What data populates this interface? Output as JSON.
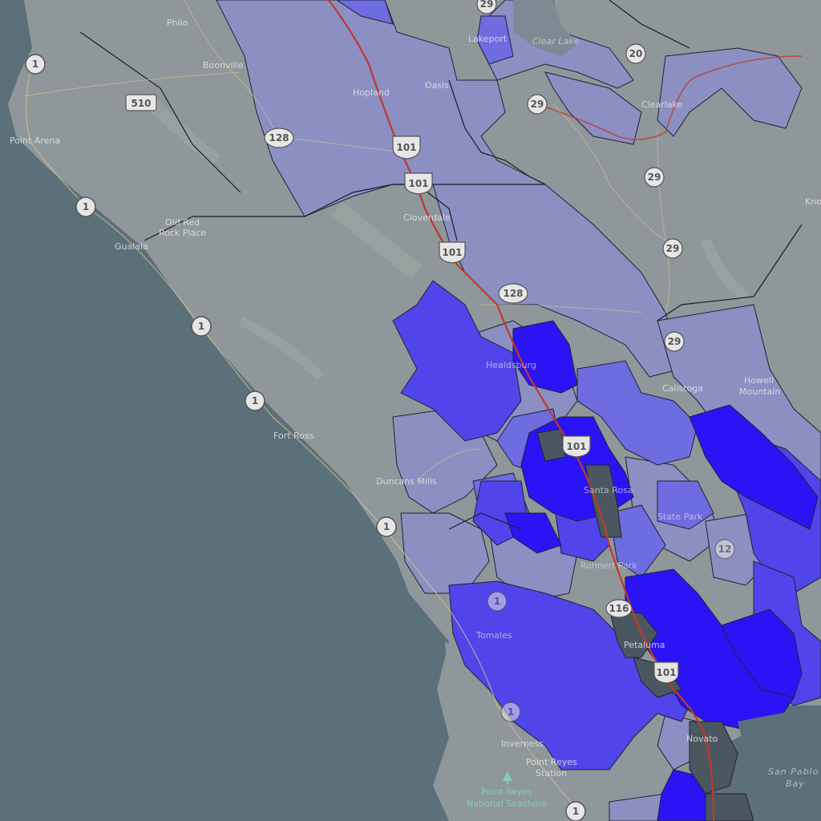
{
  "map": {
    "colors": {
      "water": "#5b7079",
      "land": "#8f979b",
      "tract_light": "#8b8fc2",
      "tract_mid": "#6d6ce0",
      "tract_strong": "#4f45ea",
      "tract_max": "#2a14f5",
      "urban": "#4b5760",
      "highway": "#c0392b",
      "road": "#d9c98a"
    },
    "places": {
      "philo": "Philo",
      "boonville": "Boonville",
      "point_arena": "Point Arena",
      "hopland": "Hopland",
      "lakeport": "Lakeport",
      "clearlake": "Clear Lake",
      "clearlake_city": "Clearlake",
      "cloverdale": "Cloverdale",
      "old_red_rock": "Old Red\nRock Place",
      "gualala": "Gualala",
      "healdsburg": "Healdsburg",
      "calistoga": "Calistoga",
      "howell_mountain": "Howell\nMountain",
      "fort_ross": "Fort Ross",
      "duncans_mills": "Duncans Mills",
      "santa_rosa": "Santa Rosa",
      "state_park": "State Park",
      "rohnert_park": "Rohnert Park",
      "petaluma": "Petaluma",
      "tomales": "Tomales",
      "inverness": "Inverness",
      "point_reyes_station": "Point Reyes\nStation",
      "novato": "Novato",
      "kno": "Kno",
      "oasis": "Oasis"
    },
    "park": "Point Reyes\nNational Seashore",
    "water_bodies": {
      "san_pablo_bay": "San Pablo\nBay"
    },
    "shields": {
      "s1": "1",
      "s510": "510",
      "s128": "128",
      "s101": "101",
      "s29": "29",
      "s20": "20",
      "s12": "12",
      "s116": "116"
    },
    "icons": [
      "state-route-shield-icon",
      "us-route-shield-icon",
      "county-route-shield-icon",
      "park-tree-icon"
    ]
  }
}
